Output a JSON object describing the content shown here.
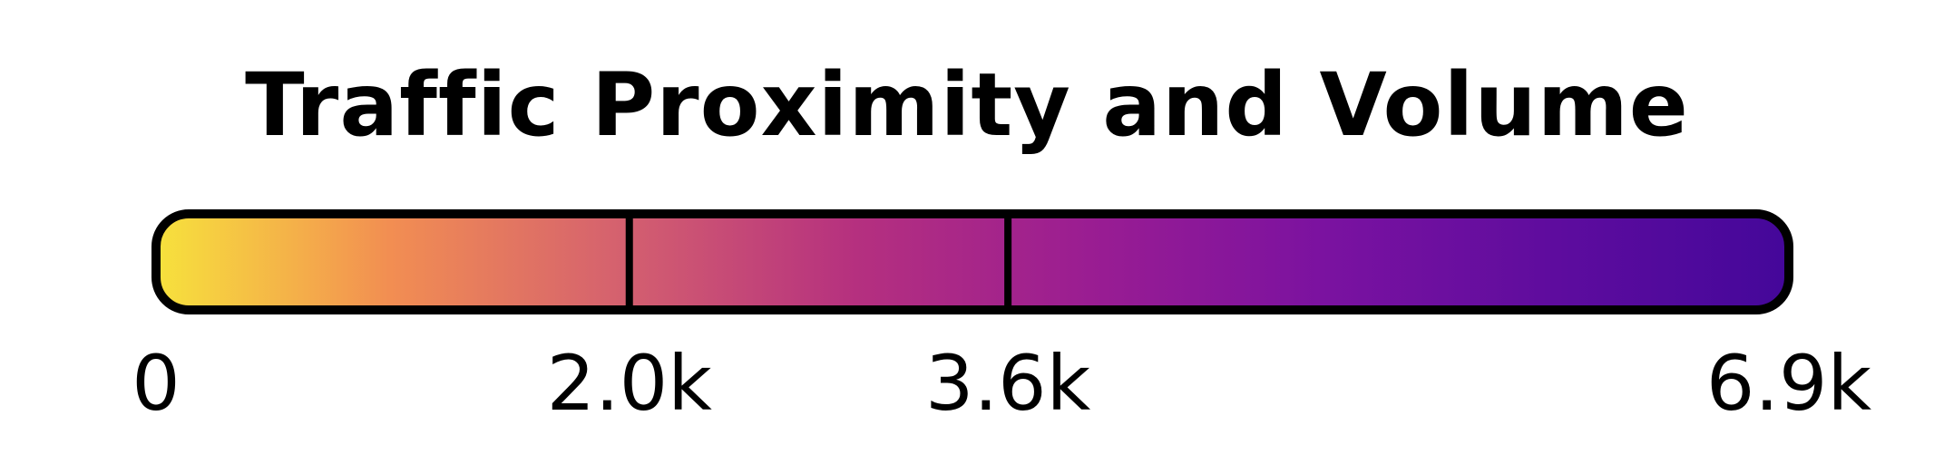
{
  "chart_data": {
    "type": "colorbar",
    "title": "Traffic Proximity and Volume",
    "colormap": "plasma",
    "range": [
      0,
      6900
    ],
    "colors": [
      "#f7e23c",
      "#f28e52",
      "#d4606f",
      "#b5307f",
      "#9a1d92",
      "#7b12a0",
      "#5e0c9e",
      "#44079a"
    ],
    "ticks": [
      {
        "value": 0,
        "label": "0"
      },
      {
        "value": 2000,
        "label": "2.0k"
      },
      {
        "value": 3600,
        "label": "3.6k"
      },
      {
        "value": 6900,
        "label": "6.9k"
      }
    ],
    "dividers": [
      2000,
      3600
    ]
  }
}
